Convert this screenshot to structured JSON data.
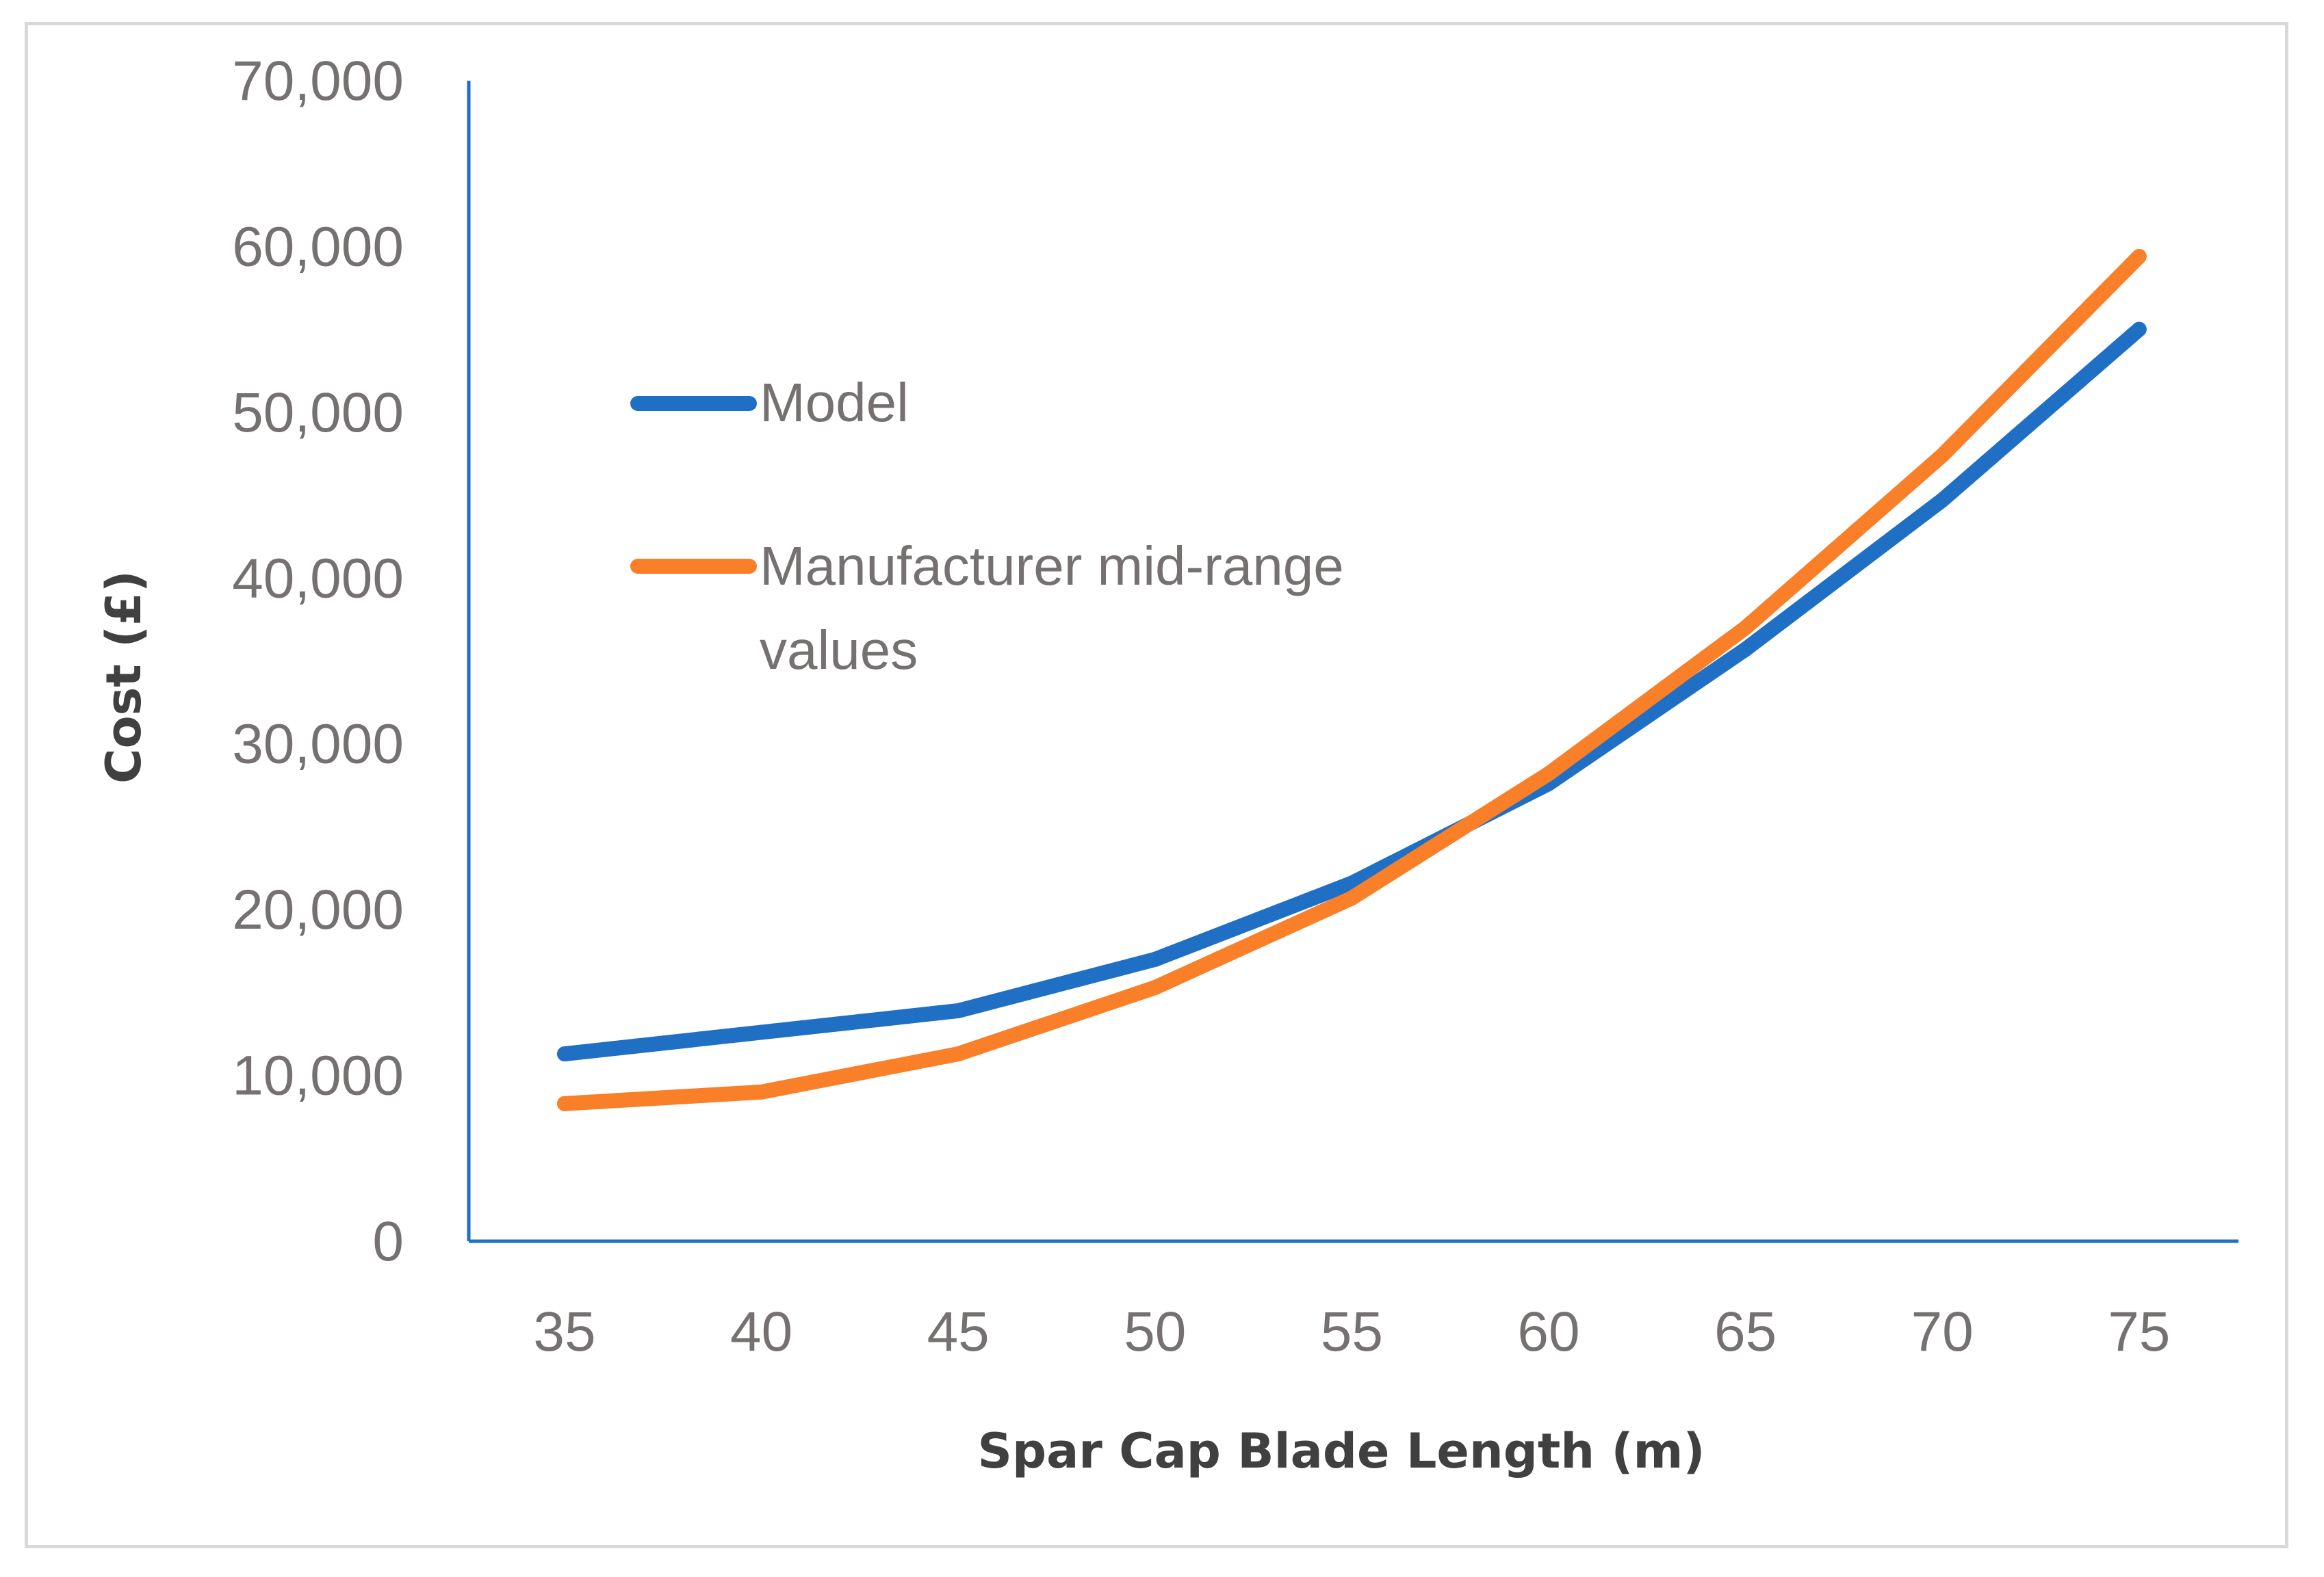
{
  "chart_data": {
    "type": "line",
    "title": "",
    "xlabel": "Spar Cap Blade Length (m)",
    "ylabel": "Cost (£)",
    "categories": [
      "35",
      "40",
      "45",
      "50",
      "55",
      "60",
      "65",
      "70",
      "75"
    ],
    "ylim": [
      0,
      70000
    ],
    "yticks": [
      0,
      10000,
      20000,
      30000,
      40000,
      50000,
      60000,
      70000
    ],
    "ytick_labels": [
      "0",
      "10,000",
      "20,000",
      "30,000",
      "40,000",
      "50,000",
      "60,000",
      "70,000"
    ],
    "grid": false,
    "legend_position": "upper-left inside plot",
    "series": [
      {
        "name": "Model",
        "color": "#1f6fc5",
        "values": [
          11300,
          12600,
          13900,
          17000,
          21600,
          27600,
          35700,
          44700,
          55000
        ]
      },
      {
        "name": "Manufacturer mid-range values",
        "legend_lines": [
          "Manufacturer mid-range",
          "values"
        ],
        "color": "#f97f29",
        "values": [
          8300,
          9000,
          11300,
          15300,
          20700,
          28200,
          37000,
          47400,
          59400
        ]
      }
    ]
  }
}
